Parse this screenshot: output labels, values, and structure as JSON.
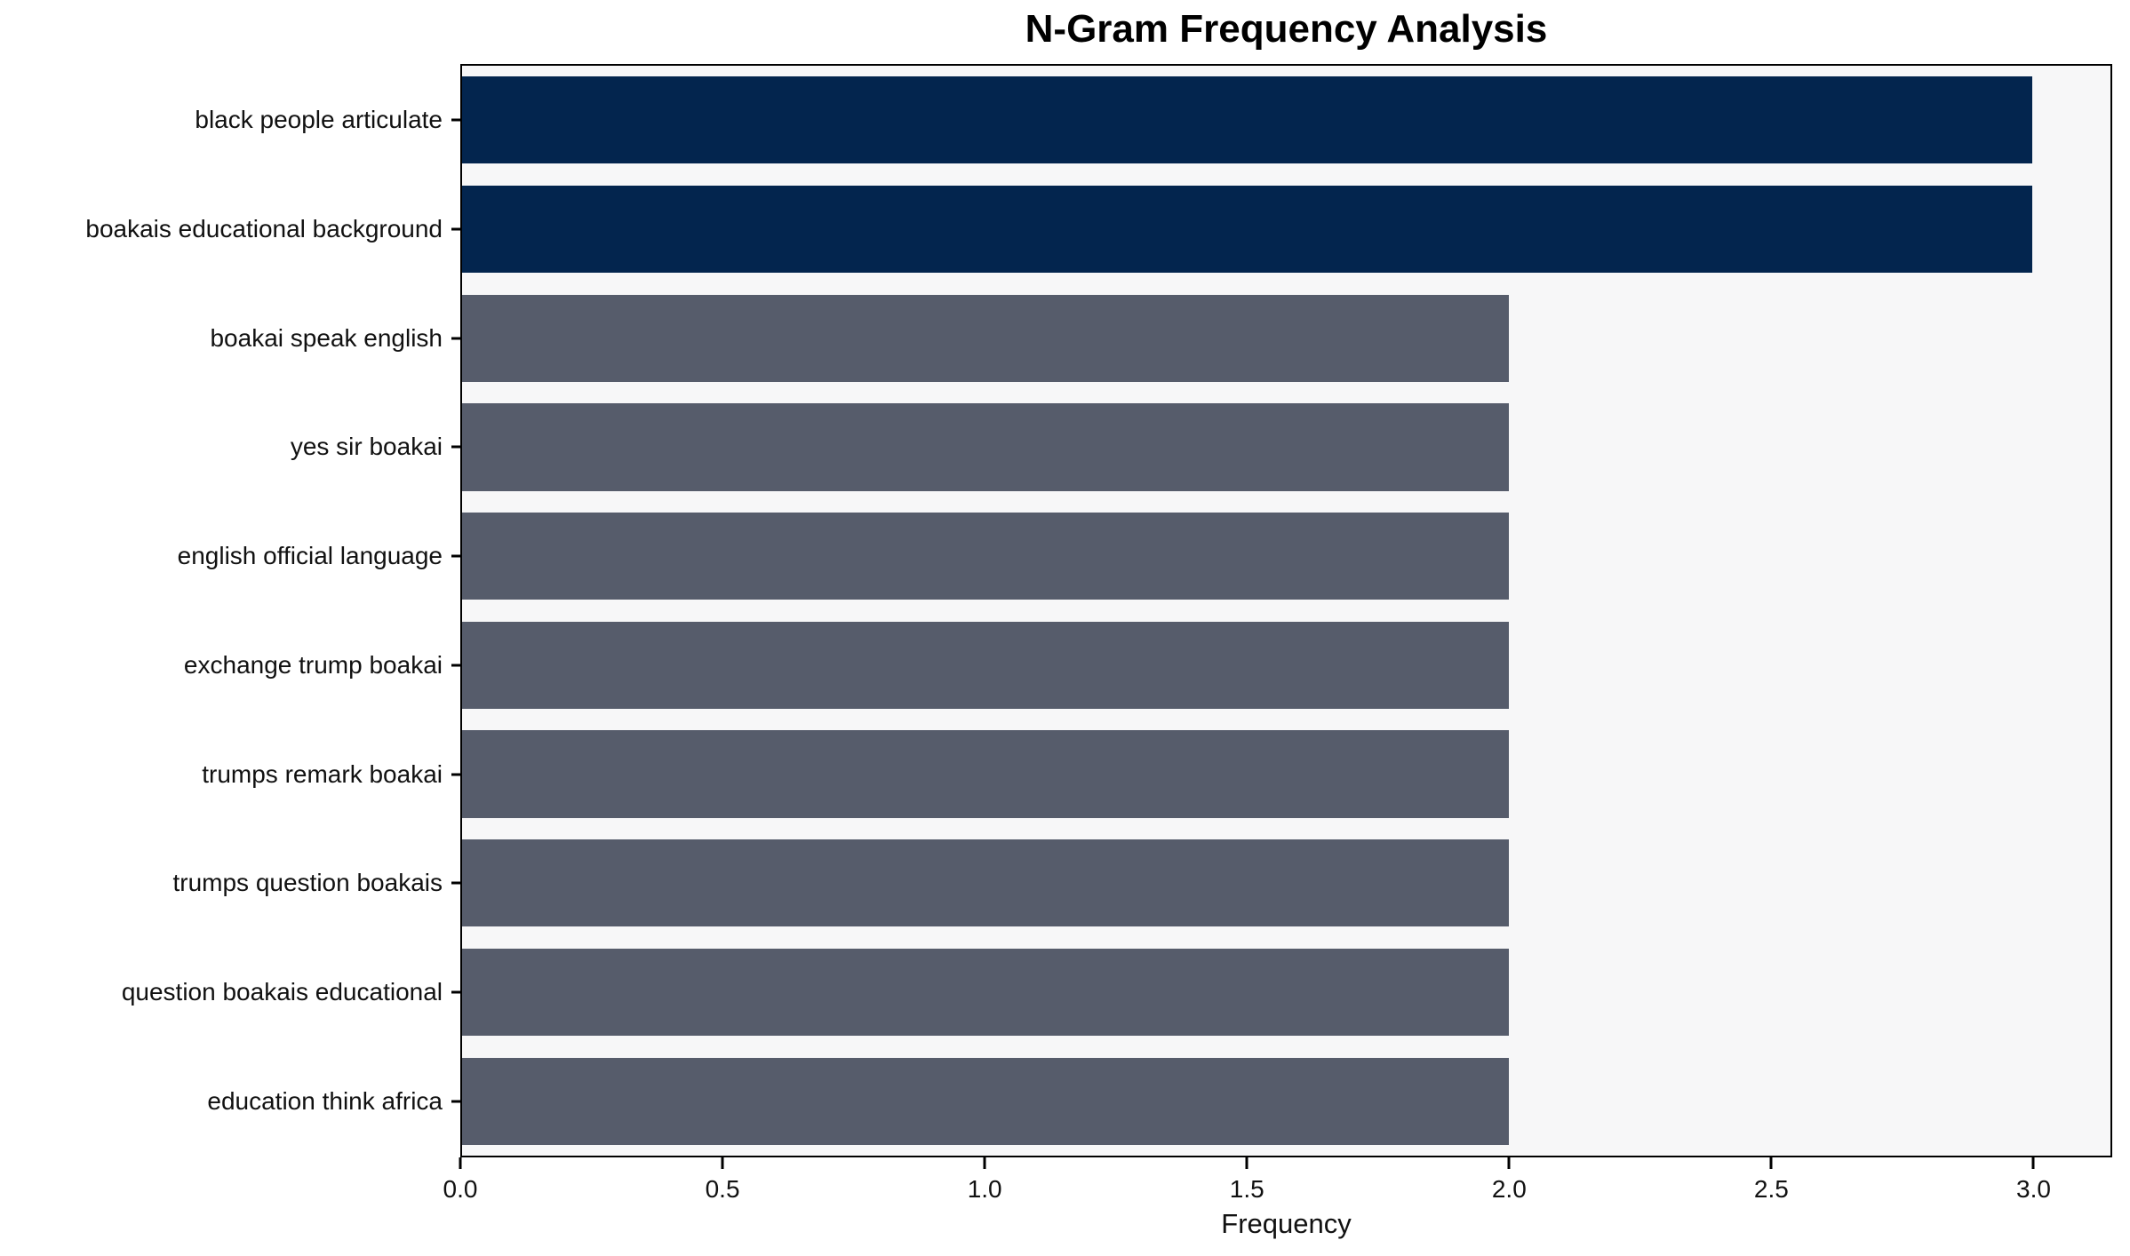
{
  "chart_data": {
    "type": "bar",
    "orientation": "horizontal",
    "title": "N-Gram Frequency Analysis",
    "xlabel": "Frequency",
    "ylabel": "",
    "categories": [
      "black people articulate",
      "boakais educational background",
      "boakai speak english",
      "yes sir boakai",
      "english official language",
      "exchange trump boakai",
      "trumps remark boakai",
      "trumps question boakais",
      "question boakais educational",
      "education think africa"
    ],
    "values": [
      3,
      3,
      2,
      2,
      2,
      2,
      2,
      2,
      2,
      2
    ],
    "bar_colors": [
      "#03254e",
      "#03254e",
      "#565c6b",
      "#565c6b",
      "#565c6b",
      "#565c6b",
      "#565c6b",
      "#565c6b",
      "#565c6b",
      "#565c6b"
    ],
    "xlim": [
      0,
      3.15
    ],
    "xticks": [
      "0.0",
      "0.5",
      "1.0",
      "1.5",
      "2.0",
      "2.5",
      "3.0"
    ],
    "grid": false,
    "legend": "none",
    "colors": {
      "highlight": "#03254e",
      "normal": "#565c6b",
      "plot_background": "#f7f7f8",
      "page_background": "#ffffff",
      "spine": "#000000",
      "text": "#111111"
    }
  }
}
